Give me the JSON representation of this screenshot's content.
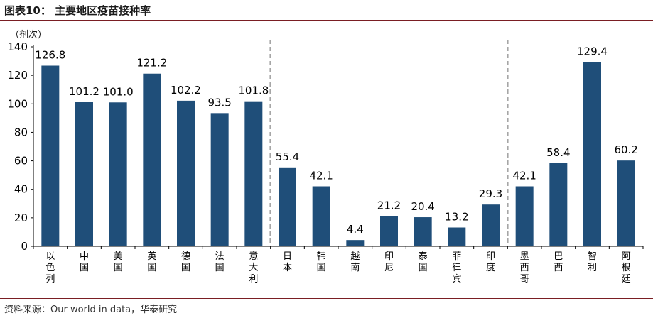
{
  "figure": {
    "title": "图表10：  主要地区疫苗接种率",
    "source": "资料来源：Our world in data，华泰研究"
  },
  "chart_data": {
    "type": "bar",
    "ylabel": "（剂次）",
    "ylim": [
      0,
      140
    ],
    "yticks": [
      0,
      20,
      40,
      60,
      80,
      100,
      120,
      140
    ],
    "grid": false,
    "categories": [
      "以色列",
      "中国",
      "美国",
      "英国",
      "德国",
      "法国",
      "意大利",
      "日本",
      "韩国",
      "越南",
      "印尼",
      "泰国",
      "菲律宾",
      "印度",
      "墨西哥",
      "巴西",
      "智利",
      "阿根廷"
    ],
    "values": [
      126.8,
      101.2,
      101.0,
      121.2,
      102.2,
      93.5,
      101.8,
      55.4,
      42.1,
      4.4,
      21.2,
      20.4,
      13.2,
      29.3,
      42.1,
      58.4,
      129.4,
      60.2
    ],
    "value_labels": [
      "126.8",
      "101.2",
      "101.0",
      "121.2",
      "102.2",
      "93.5",
      "101.8",
      "55.4",
      "42.1",
      "4.4",
      "21.2",
      "20.4",
      "13.2",
      "29.3",
      "42.1",
      "58.4",
      "129.4",
      "60.2"
    ],
    "group_separators_after": [
      6,
      13
    ],
    "bar_color": "#1f4e79",
    "separator_color": "#a6a6a6"
  }
}
